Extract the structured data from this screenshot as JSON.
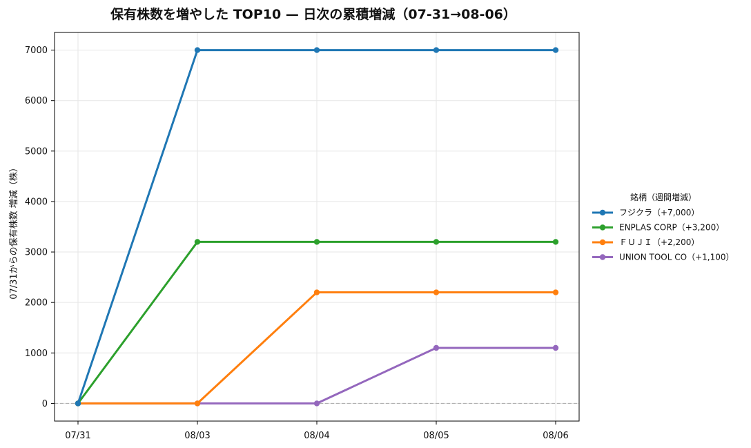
{
  "chart_data": {
    "type": "line",
    "title": "保有株数を増やした TOP10 — 日次の累積増減（07-31→08-06）",
    "xlabel": "",
    "ylabel": "07/31からの保有株数 増減（株）",
    "categories": [
      "07/31",
      "08/03",
      "08/04",
      "08/05",
      "08/06"
    ],
    "ylim": [
      -350,
      7350
    ],
    "yticks": [
      0,
      1000,
      2000,
      3000,
      4000,
      5000,
      6000,
      7000
    ],
    "grid": true,
    "zero_line": true,
    "legend_title": "銘柄（週間増減）",
    "legend_position": "right",
    "series": [
      {
        "name": "フジクラ（+7,000）",
        "color": "#1f77b4",
        "values": [
          0,
          7000,
          7000,
          7000,
          7000
        ]
      },
      {
        "name": "ENPLAS CORP（+3,200）",
        "color": "#2ca02c",
        "values": [
          0,
          3200,
          3200,
          3200,
          3200
        ]
      },
      {
        "name": "ＦＵＪＩ（+2,200）",
        "color": "#ff7f0e",
        "values": [
          0,
          0,
          2200,
          2200,
          2200
        ]
      },
      {
        "name": "UNION TOOL CO（+1,100）",
        "color": "#9467bd",
        "values": [
          0,
          0,
          0,
          1100,
          1100
        ]
      }
    ]
  }
}
